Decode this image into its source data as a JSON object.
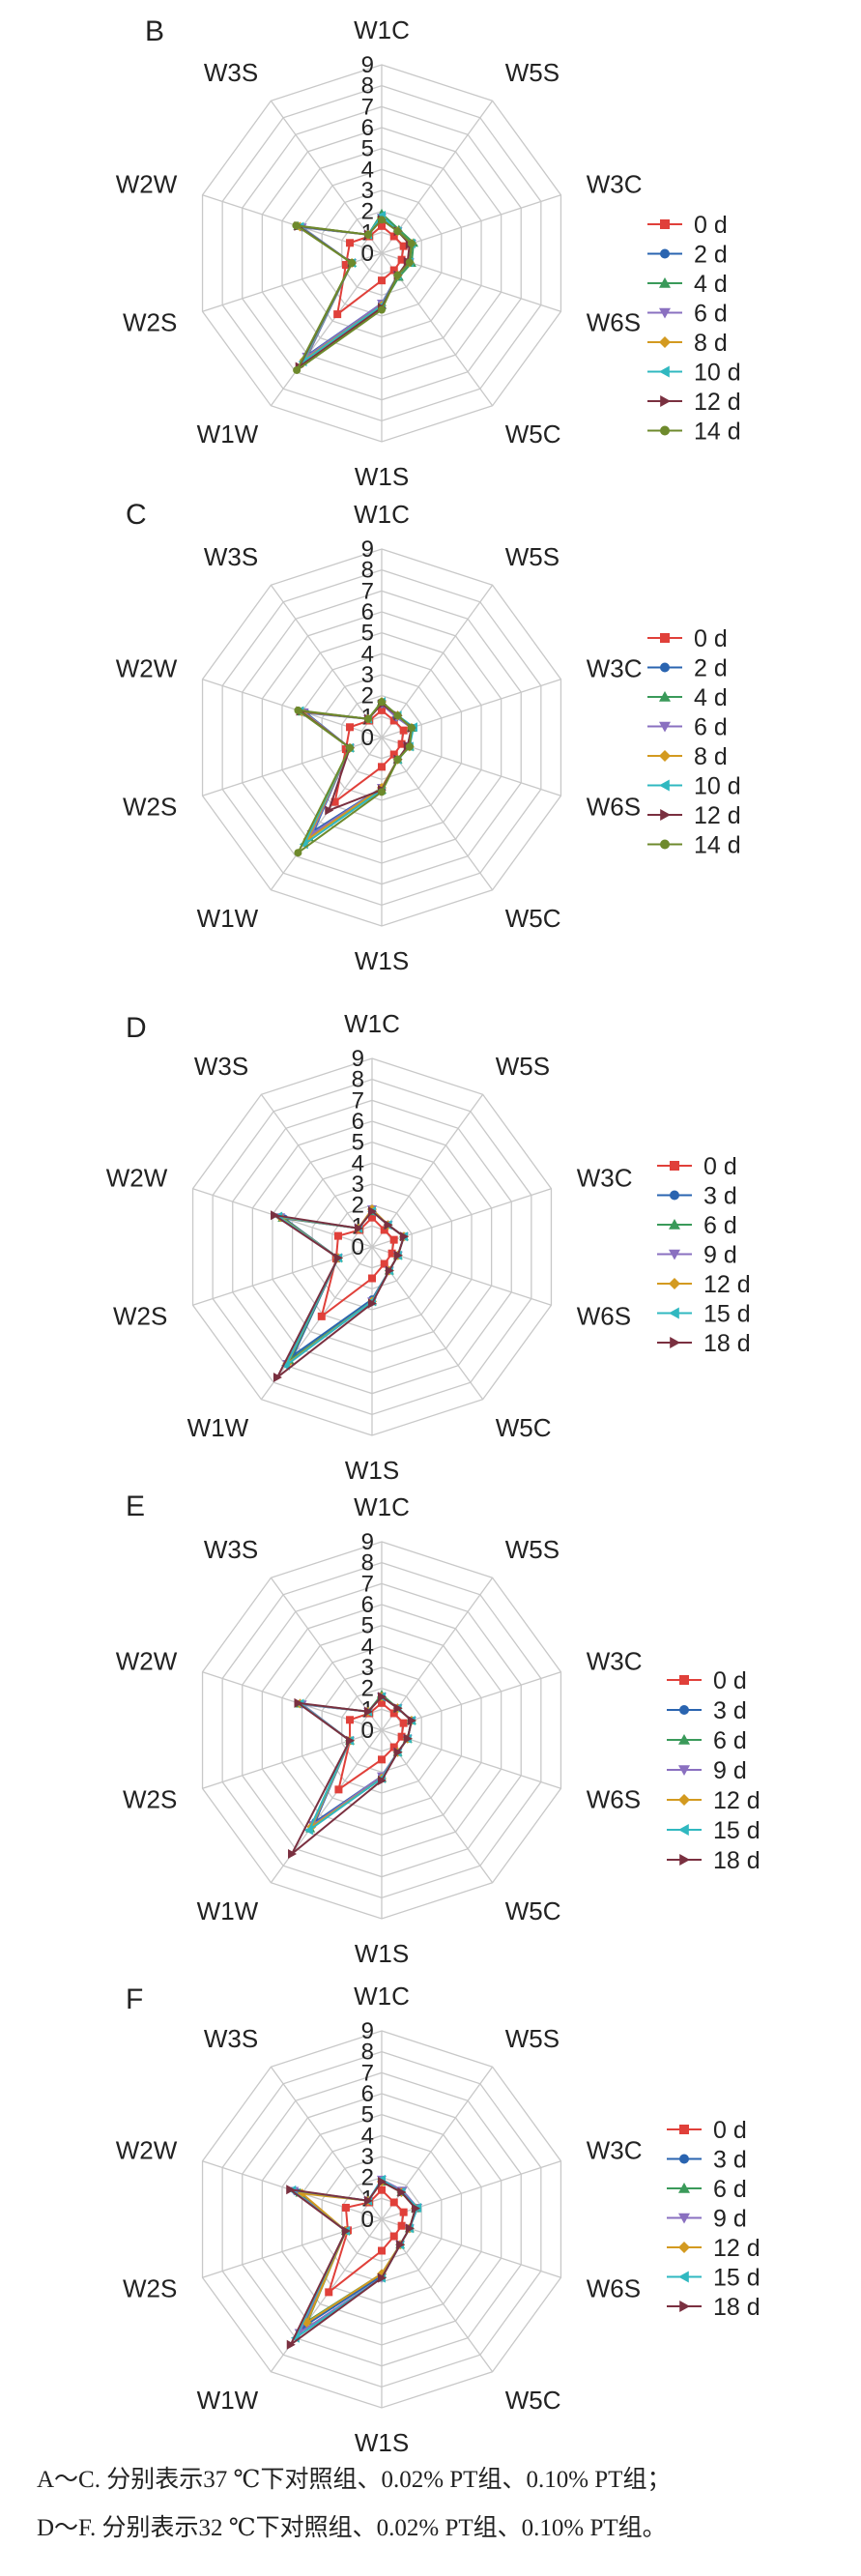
{
  "caption": {
    "line1": "A～C. 分别表示37 ℃下对照组、0.02% PT组、0.10% PT组；",
    "line2": "D～F. 分别表示32 ℃下对照组、0.02% PT组、0.10% PT组。"
  },
  "chart_data": [
    {
      "type": "radar",
      "panel_label": "B",
      "axes": [
        "W1C",
        "W5S",
        "W3C",
        "W6S",
        "W5C",
        "W1S",
        "W1W",
        "W2S",
        "W2W",
        "W3S"
      ],
      "radial_ticks": [
        0,
        1,
        2,
        3,
        4,
        5,
        6,
        7,
        8,
        9
      ],
      "rlim": [
        0,
        9
      ],
      "legend_position": "right",
      "series": [
        {
          "name": "0 d",
          "color": "#e0403a",
          "marker": "square",
          "values": [
            1.3,
            1.0,
            1.1,
            1.0,
            1.0,
            1.3,
            3.6,
            1.8,
            1.6,
            1.0
          ]
        },
        {
          "name": "2 d",
          "color": "#2a64b0",
          "marker": "circle",
          "values": [
            1.7,
            1.3,
            1.5,
            1.4,
            1.3,
            2.4,
            6.0,
            1.5,
            4.0,
            1.1
          ]
        },
        {
          "name": "4 d",
          "color": "#3a9a5a",
          "marker": "triangle",
          "values": [
            1.9,
            1.4,
            1.6,
            1.5,
            1.4,
            2.5,
            6.2,
            1.5,
            4.2,
            1.1
          ]
        },
        {
          "name": "6 d",
          "color": "#8a70c0",
          "marker": "triangle-down",
          "values": [
            1.7,
            1.3,
            1.5,
            1.4,
            1.3,
            2.4,
            6.1,
            1.5,
            4.0,
            1.1
          ]
        },
        {
          "name": "8 d",
          "color": "#d39a20",
          "marker": "diamond",
          "values": [
            1.7,
            1.3,
            1.5,
            1.4,
            1.3,
            2.5,
            6.3,
            1.5,
            4.1,
            1.1
          ]
        },
        {
          "name": "10 d",
          "color": "#30b8c0",
          "marker": "triangle-left",
          "values": [
            1.8,
            1.3,
            1.5,
            1.4,
            1.3,
            2.5,
            6.4,
            1.5,
            4.1,
            1.1
          ]
        },
        {
          "name": "12 d",
          "color": "#7a3040",
          "marker": "triangle-right",
          "values": [
            1.6,
            1.3,
            1.4,
            1.3,
            1.3,
            2.6,
            6.7,
            1.5,
            4.2,
            1.1
          ]
        },
        {
          "name": "14 d",
          "color": "#6e8a2c",
          "marker": "circle",
          "values": [
            1.6,
            1.3,
            1.5,
            1.4,
            1.3,
            2.7,
            6.9,
            1.5,
            4.3,
            1.1
          ]
        }
      ]
    },
    {
      "type": "radar",
      "panel_label": "C",
      "axes": [
        "W1C",
        "W5S",
        "W3C",
        "W6S",
        "W5C",
        "W1S",
        "W1W",
        "W2S",
        "W2W",
        "W3S"
      ],
      "radial_ticks": [
        0,
        1,
        2,
        3,
        4,
        5,
        6,
        7,
        8,
        9
      ],
      "rlim": [
        0,
        9
      ],
      "legend_position": "right",
      "series": [
        {
          "name": "0 d",
          "color": "#e0403a",
          "marker": "square",
          "values": [
            1.3,
            1.0,
            1.1,
            1.0,
            1.0,
            1.4,
            3.8,
            1.8,
            1.6,
            1.0
          ]
        },
        {
          "name": "2 d",
          "color": "#2a64b0",
          "marker": "circle",
          "values": [
            1.6,
            1.2,
            1.5,
            1.4,
            1.3,
            2.4,
            5.5,
            1.6,
            3.8,
            1.1
          ]
        },
        {
          "name": "4 d",
          "color": "#3a9a5a",
          "marker": "triangle",
          "values": [
            1.7,
            1.3,
            1.5,
            1.4,
            1.3,
            2.5,
            5.9,
            1.6,
            4.0,
            1.1
          ]
        },
        {
          "name": "6 d",
          "color": "#8a70c0",
          "marker": "triangle-down",
          "values": [
            1.6,
            1.2,
            1.5,
            1.3,
            1.3,
            2.4,
            5.7,
            1.6,
            3.9,
            1.1
          ]
        },
        {
          "name": "8 d",
          "color": "#d39a20",
          "marker": "diamond",
          "values": [
            1.7,
            1.3,
            1.5,
            1.4,
            1.3,
            2.4,
            6.0,
            1.6,
            4.0,
            1.1
          ]
        },
        {
          "name": "10 d",
          "color": "#30b8c0",
          "marker": "triangle-left",
          "values": [
            1.7,
            1.3,
            1.6,
            1.4,
            1.3,
            2.5,
            6.3,
            1.6,
            4.1,
            1.1
          ]
        },
        {
          "name": "12 d",
          "color": "#7a3040",
          "marker": "triangle-right",
          "values": [
            1.6,
            1.3,
            1.5,
            1.3,
            1.3,
            2.5,
            4.3,
            1.6,
            4.1,
            1.1
          ]
        },
        {
          "name": "14 d",
          "color": "#6e8a2c",
          "marker": "circle",
          "values": [
            1.7,
            1.3,
            1.5,
            1.4,
            1.3,
            2.6,
            6.8,
            1.6,
            4.2,
            1.1
          ]
        }
      ]
    },
    {
      "type": "radar",
      "panel_label": "D",
      "axes": [
        "W1C",
        "W5S",
        "W3C",
        "W6S",
        "W5C",
        "W1S",
        "W1W",
        "W2S",
        "W2W",
        "W3S"
      ],
      "radial_ticks": [
        0,
        1,
        2,
        3,
        4,
        5,
        6,
        7,
        8,
        9
      ],
      "rlim": [
        0,
        9
      ],
      "legend_position": "right",
      "series": [
        {
          "name": "0 d",
          "color": "#e0403a",
          "marker": "square",
          "values": [
            1.4,
            1.0,
            1.1,
            1.0,
            1.0,
            1.5,
            4.1,
            1.8,
            1.7,
            1.0
          ]
        },
        {
          "name": "3 d",
          "color": "#2a64b0",
          "marker": "circle",
          "values": [
            1.7,
            1.3,
            1.6,
            1.3,
            1.4,
            2.5,
            6.4,
            1.7,
            4.4,
            1.1
          ]
        },
        {
          "name": "6 d",
          "color": "#3a9a5a",
          "marker": "triangle",
          "values": [
            1.7,
            1.3,
            1.6,
            1.3,
            1.4,
            2.6,
            6.7,
            1.7,
            4.5,
            1.1
          ]
        },
        {
          "name": "9 d",
          "color": "#8a70c0",
          "marker": "triangle-down",
          "values": [
            1.8,
            1.3,
            1.6,
            1.3,
            1.4,
            2.6,
            6.9,
            1.7,
            4.6,
            1.1
          ]
        },
        {
          "name": "12 d",
          "color": "#d39a20",
          "marker": "diamond",
          "values": [
            1.8,
            1.3,
            1.6,
            1.3,
            1.4,
            2.6,
            6.9,
            1.7,
            4.6,
            1.1
          ]
        },
        {
          "name": "15 d",
          "color": "#30b8c0",
          "marker": "triangle-left",
          "values": [
            1.7,
            1.3,
            1.6,
            1.3,
            1.4,
            2.6,
            7.0,
            1.7,
            4.7,
            1.1
          ]
        },
        {
          "name": "18 d",
          "color": "#7a3040",
          "marker": "triangle-right",
          "values": [
            1.7,
            1.3,
            1.6,
            1.3,
            1.4,
            2.7,
            7.7,
            1.7,
            4.9,
            1.1
          ]
        }
      ]
    },
    {
      "type": "radar",
      "panel_label": "E",
      "axes": [
        "W1C",
        "W5S",
        "W3C",
        "W6S",
        "W5C",
        "W1S",
        "W1W",
        "W2S",
        "W2W",
        "W3S"
      ],
      "radial_ticks": [
        0,
        1,
        2,
        3,
        4,
        5,
        6,
        7,
        8,
        9
      ],
      "rlim": [
        0,
        9
      ],
      "legend_position": "right",
      "series": [
        {
          "name": "0 d",
          "color": "#e0403a",
          "marker": "square",
          "values": [
            1.3,
            1.0,
            1.1,
            1.0,
            1.0,
            1.4,
            3.5,
            1.6,
            1.6,
            1.0
          ]
        },
        {
          "name": "3 d",
          "color": "#2a64b0",
          "marker": "circle",
          "values": [
            1.6,
            1.3,
            1.5,
            1.3,
            1.3,
            2.2,
            5.4,
            1.6,
            4.0,
            1.1
          ]
        },
        {
          "name": "6 d",
          "color": "#3a9a5a",
          "marker": "triangle",
          "values": [
            1.7,
            1.3,
            1.5,
            1.3,
            1.3,
            2.3,
            5.8,
            1.6,
            4.1,
            1.1
          ]
        },
        {
          "name": "9 d",
          "color": "#8a70c0",
          "marker": "triangle-down",
          "values": [
            1.6,
            1.3,
            1.5,
            1.3,
            1.3,
            2.2,
            5.6,
            1.6,
            4.0,
            1.1
          ]
        },
        {
          "name": "12 d",
          "color": "#d39a20",
          "marker": "diamond",
          "values": [
            1.6,
            1.3,
            1.5,
            1.3,
            1.3,
            2.3,
            5.7,
            1.6,
            4.1,
            1.1
          ]
        },
        {
          "name": "15 d",
          "color": "#30b8c0",
          "marker": "triangle-left",
          "values": [
            1.6,
            1.3,
            1.5,
            1.3,
            1.3,
            2.3,
            5.9,
            1.6,
            4.1,
            1.1
          ]
        },
        {
          "name": "18 d",
          "color": "#7a3040",
          "marker": "triangle-right",
          "values": [
            1.6,
            1.3,
            1.5,
            1.3,
            1.3,
            2.4,
            7.3,
            1.6,
            4.2,
            1.1
          ]
        }
      ]
    },
    {
      "type": "radar",
      "panel_label": "F",
      "axes": [
        "W1C",
        "W5S",
        "W3C",
        "W6S",
        "W5C",
        "W1S",
        "W1W",
        "W2S",
        "W2W",
        "W3S"
      ],
      "radial_ticks": [
        0,
        1,
        2,
        3,
        4,
        5,
        6,
        7,
        8,
        9
      ],
      "rlim": [
        0,
        9
      ],
      "legend_position": "right",
      "series": [
        {
          "name": "0 d",
          "color": "#e0403a",
          "marker": "square",
          "values": [
            1.4,
            1.0,
            1.1,
            1.0,
            1.0,
            1.5,
            4.3,
            1.7,
            1.8,
            1.0
          ]
        },
        {
          "name": "3 d",
          "color": "#2a64b0",
          "marker": "circle",
          "values": [
            1.8,
            1.6,
            1.7,
            1.4,
            1.5,
            2.7,
            6.3,
            1.8,
            4.3,
            1.1
          ]
        },
        {
          "name": "6 d",
          "color": "#3a9a5a",
          "marker": "triangle",
          "values": [
            1.8,
            1.6,
            1.7,
            1.4,
            1.5,
            2.6,
            6.0,
            1.8,
            4.1,
            1.1
          ]
        },
        {
          "name": "9 d",
          "color": "#8a70c0",
          "marker": "triangle-down",
          "values": [
            1.9,
            1.7,
            1.8,
            1.4,
            1.5,
            2.8,
            6.7,
            1.8,
            4.4,
            1.1
          ]
        },
        {
          "name": "12 d",
          "color": "#d39a20",
          "marker": "diamond",
          "values": [
            1.8,
            1.6,
            1.7,
            1.4,
            1.5,
            2.6,
            6.1,
            1.8,
            4.0,
            1.1
          ]
        },
        {
          "name": "15 d",
          "color": "#30b8c0",
          "marker": "triangle-left",
          "values": [
            1.9,
            1.6,
            1.8,
            1.4,
            1.5,
            2.8,
            7.0,
            1.8,
            4.5,
            1.1
          ]
        },
        {
          "name": "18 d",
          "color": "#7a3040",
          "marker": "triangle-right",
          "values": [
            1.8,
            1.6,
            1.7,
            1.4,
            1.5,
            2.8,
            7.4,
            1.8,
            4.6,
            1.1
          ]
        }
      ]
    }
  ]
}
